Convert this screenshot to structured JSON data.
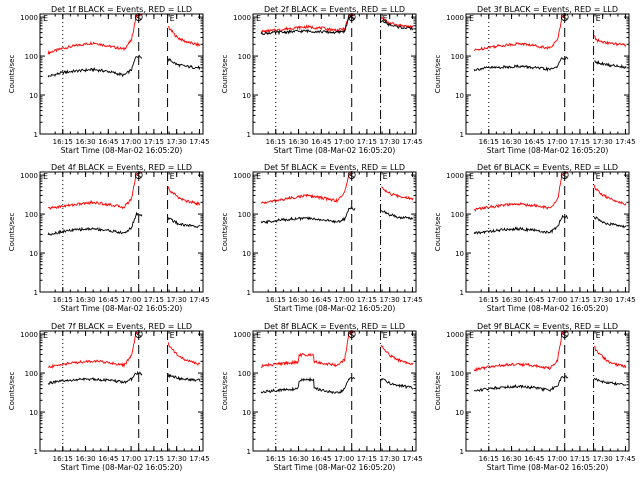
{
  "chart_data": [
    {
      "type": "line",
      "title": "Det 1f BLACK = Events, RED = LLD",
      "xlabel": "Start Time (08-Mar-02 16:05:20)",
      "ylabel": "Counts/sec",
      "x_ticks": [
        "16:15",
        "16:30",
        "16:45",
        "17:00",
        "17:15",
        "17:30",
        "17:45"
      ],
      "x_range_min": [
        -5.33,
        102
      ],
      "y_ticks": [
        "1",
        "10",
        "100",
        "1000"
      ],
      "ylim": [
        1,
        1200
      ],
      "scale": "log",
      "markers": [
        {
          "label": "E",
          "time_min": 0,
          "style": "none"
        },
        {
          "label": "",
          "time_min": 9.67,
          "style": "dotted"
        },
        {
          "label": "S",
          "time_min": 59.67,
          "style": "dashed"
        },
        {
          "label": "E",
          "time_min": 78.67,
          "style": "dashed"
        }
      ],
      "series": [
        {
          "color": "#ff0000",
          "x": [
            0,
            10,
            20,
            30,
            40,
            50,
            55,
            58,
            62,
            75,
            80,
            85,
            90,
            95,
            100
          ],
          "y": [
            120,
            160,
            190,
            220,
            180,
            150,
            260,
            1100,
            1200,
            1200,
            500,
            300,
            240,
            210,
            190
          ]
        },
        {
          "color": "#000000",
          "x": [
            0,
            10,
            20,
            30,
            40,
            50,
            55,
            58,
            80,
            85,
            90,
            95,
            100
          ],
          "y": [
            30,
            38,
            42,
            45,
            40,
            32,
            45,
            100,
            80,
            60,
            55,
            52,
            50
          ]
        }
      ],
      "gaps": [
        [
          62,
          79
        ]
      ]
    },
    {
      "type": "line",
      "title": "Det 2f BLACK = Events, RED = LLD",
      "xlabel": "Start Time (08-Mar-02 16:05:20)",
      "ylabel": "Counts/sec",
      "x_ticks": [
        "16:15",
        "16:30",
        "16:45",
        "17:00",
        "17:15",
        "17:30",
        "17:45"
      ],
      "x_range_min": [
        -5.33,
        102
      ],
      "y_ticks": [
        "1",
        "10",
        "100",
        "1000"
      ],
      "ylim": [
        1,
        1200
      ],
      "scale": "log",
      "markers": [
        {
          "label": "E",
          "time_min": 0,
          "style": "none"
        },
        {
          "label": "",
          "time_min": 9.67,
          "style": "dotted"
        },
        {
          "label": "S",
          "time_min": 59.67,
          "style": "dashed"
        },
        {
          "label": "E",
          "time_min": 78.67,
          "style": "dashdot"
        }
      ],
      "series": [
        {
          "color": "#ff0000",
          "x": [
            0,
            10,
            20,
            30,
            40,
            50,
            55,
            58,
            62,
            75,
            80,
            85,
            90,
            100
          ],
          "y": [
            420,
            460,
            520,
            560,
            520,
            460,
            500,
            1100,
            1200,
            1200,
            900,
            700,
            620,
            560
          ]
        },
        {
          "color": "#000000",
          "x": [
            0,
            10,
            20,
            30,
            40,
            50,
            55,
            58,
            80,
            85,
            90,
            100
          ],
          "y": [
            380,
            400,
            420,
            440,
            420,
            400,
            440,
            1000,
            800,
            620,
            560,
            500
          ]
        }
      ],
      "gaps": [
        [
          62,
          79
        ]
      ]
    },
    {
      "type": "line",
      "title": "Det 3f BLACK = Events, RED = LLD",
      "xlabel": "Start Time (08-Mar-02 16:05:20)",
      "ylabel": "Counts/sec",
      "x_ticks": [
        "16:15",
        "16:30",
        "16:45",
        "17:00",
        "17:15",
        "17:30",
        "17:45"
      ],
      "x_range_min": [
        -5.33,
        102
      ],
      "y_ticks": [
        "1",
        "10",
        "100",
        "1000"
      ],
      "ylim": [
        1,
        1200
      ],
      "scale": "log",
      "markers": [
        {
          "label": "E",
          "time_min": 0,
          "style": "none"
        },
        {
          "label": "",
          "time_min": 9.67,
          "style": "dotted"
        },
        {
          "label": "S",
          "time_min": 59.67,
          "style": "dashed"
        },
        {
          "label": "E",
          "time_min": 78.67,
          "style": "dashdot"
        }
      ],
      "series": [
        {
          "color": "#ff0000",
          "x": [
            0,
            10,
            20,
            30,
            40,
            50,
            55,
            58,
            62,
            75,
            80,
            85,
            90,
            95,
            100
          ],
          "y": [
            140,
            170,
            190,
            210,
            185,
            160,
            260,
            1100,
            1200,
            1200,
            260,
            230,
            210,
            200,
            190
          ]
        },
        {
          "color": "#000000",
          "x": [
            0,
            10,
            20,
            30,
            40,
            50,
            55,
            58,
            80,
            85,
            90,
            95,
            100
          ],
          "y": [
            45,
            50,
            52,
            55,
            50,
            45,
            55,
            90,
            70,
            62,
            58,
            55,
            52
          ]
        }
      ],
      "gaps": [
        [
          62,
          79
        ]
      ]
    },
    {
      "type": "line",
      "title": "Det 4f BLACK = Events, RED = LLD",
      "xlabel": "Start Time (08-Mar-02 16:05:20)",
      "ylabel": "Counts/sec",
      "x_ticks": [
        "16:15",
        "16:30",
        "16:45",
        "17:00",
        "17:15",
        "17:30",
        "17:45"
      ],
      "x_range_min": [
        -5.33,
        102
      ],
      "y_ticks": [
        "1",
        "10",
        "100",
        "1000"
      ],
      "ylim": [
        1,
        1200
      ],
      "scale": "log",
      "markers": [
        {
          "label": "E",
          "time_min": 0,
          "style": "none"
        },
        {
          "label": "",
          "time_min": 9.67,
          "style": "dotted"
        },
        {
          "label": "S",
          "time_min": 59.67,
          "style": "dashed"
        },
        {
          "label": "E",
          "time_min": 78.67,
          "style": "dashed"
        }
      ],
      "series": [
        {
          "color": "#ff0000",
          "x": [
            0,
            10,
            20,
            30,
            40,
            50,
            55,
            58,
            62,
            75,
            80,
            85,
            90,
            95,
            100
          ],
          "y": [
            140,
            160,
            180,
            200,
            175,
            150,
            250,
            1100,
            1200,
            1200,
            400,
            280,
            220,
            200,
            180
          ]
        },
        {
          "color": "#000000",
          "x": [
            0,
            10,
            20,
            30,
            40,
            50,
            55,
            58,
            80,
            85,
            90,
            95,
            100
          ],
          "y": [
            30,
            36,
            40,
            42,
            38,
            32,
            45,
            100,
            75,
            58,
            52,
            50,
            48
          ]
        }
      ],
      "gaps": [
        [
          62,
          79
        ]
      ]
    },
    {
      "type": "line",
      "title": "Det 5f BLACK = Events, RED = LLD",
      "xlabel": "Start Time (08-Mar-02 16:05:20)",
      "ylabel": "Counts/sec",
      "x_ticks": [
        "16:15",
        "16:30",
        "16:45",
        "17:00",
        "17:15",
        "17:30",
        "17:45"
      ],
      "x_range_min": [
        -5.33,
        102
      ],
      "y_ticks": [
        "1",
        "10",
        "100",
        "1000"
      ],
      "ylim": [
        1,
        1200
      ],
      "scale": "log",
      "markers": [
        {
          "label": "E",
          "time_min": 0,
          "style": "none"
        },
        {
          "label": "",
          "time_min": 9.67,
          "style": "dotted"
        },
        {
          "label": "S",
          "time_min": 59.67,
          "style": "dashed"
        },
        {
          "label": "E",
          "time_min": 78.67,
          "style": "dashdot"
        }
      ],
      "series": [
        {
          "color": "#ff0000",
          "x": [
            0,
            10,
            20,
            30,
            40,
            50,
            55,
            58,
            62,
            75,
            80,
            85,
            90,
            95,
            100
          ],
          "y": [
            190,
            220,
            260,
            300,
            260,
            220,
            350,
            1100,
            1200,
            1200,
            450,
            330,
            290,
            270,
            250
          ]
        },
        {
          "color": "#000000",
          "x": [
            0,
            10,
            20,
            30,
            40,
            50,
            55,
            58,
            80,
            85,
            90,
            95,
            100
          ],
          "y": [
            60,
            68,
            75,
            78,
            72,
            62,
            75,
            140,
            120,
            95,
            85,
            80,
            78
          ]
        }
      ],
      "gaps": [
        [
          62,
          79
        ]
      ]
    },
    {
      "type": "line",
      "title": "Det 6f BLACK = Events, RED = LLD",
      "xlabel": "Start Time (08-Mar-02 16:05:20)",
      "ylabel": "Counts/sec",
      "x_ticks": [
        "16:15",
        "16:30",
        "16:45",
        "17:00",
        "17:15",
        "17:30",
        "17:45"
      ],
      "x_range_min": [
        -5.33,
        102
      ],
      "y_ticks": [
        "1",
        "10",
        "100",
        "1000"
      ],
      "ylim": [
        1,
        1200
      ],
      "scale": "log",
      "markers": [
        {
          "label": "E",
          "time_min": 0,
          "style": "none"
        },
        {
          "label": "",
          "time_min": 9.67,
          "style": "dotted"
        },
        {
          "label": "S",
          "time_min": 59.67,
          "style": "dashed"
        },
        {
          "label": "E",
          "time_min": 78.67,
          "style": "dashdot"
        }
      ],
      "series": [
        {
          "color": "#ff0000",
          "x": [
            0,
            10,
            20,
            30,
            40,
            50,
            55,
            58,
            62,
            75,
            80,
            85,
            90,
            95,
            100
          ],
          "y": [
            130,
            150,
            170,
            180,
            165,
            140,
            230,
            1100,
            1200,
            1200,
            450,
            300,
            240,
            210,
            180
          ]
        },
        {
          "color": "#000000",
          "x": [
            0,
            10,
            20,
            30,
            40,
            50,
            55,
            58,
            80,
            85,
            90,
            95,
            100
          ],
          "y": [
            32,
            36,
            40,
            42,
            38,
            33,
            48,
            85,
            80,
            60,
            55,
            50,
            48
          ]
        }
      ],
      "gaps": [
        [
          62,
          79
        ]
      ]
    },
    {
      "type": "line",
      "title": "Det 7f BLACK = Events, RED = LLD",
      "xlabel": "Start Time (08-Mar-02 16:05:20)",
      "ylabel": "Counts/sec",
      "x_ticks": [
        "16:15",
        "16:30",
        "16:45",
        "17:00",
        "17:15",
        "17:30",
        "17:45"
      ],
      "x_range_min": [
        -5.33,
        102
      ],
      "y_ticks": [
        "1",
        "10",
        "100",
        "1000"
      ],
      "ylim": [
        1,
        1200
      ],
      "scale": "log",
      "markers": [
        {
          "label": "E",
          "time_min": 0,
          "style": "none"
        },
        {
          "label": "",
          "time_min": 9.67,
          "style": "dotted"
        },
        {
          "label": "S",
          "time_min": 59.67,
          "style": "dashed"
        },
        {
          "label": "E",
          "time_min": 78.67,
          "style": "dashed"
        }
      ],
      "series": [
        {
          "color": "#ff0000",
          "x": [
            0,
            10,
            20,
            30,
            40,
            50,
            55,
            58,
            62,
            75,
            80,
            85,
            90,
            95,
            100
          ],
          "y": [
            140,
            170,
            190,
            205,
            185,
            160,
            280,
            1100,
            1200,
            1200,
            500,
            300,
            220,
            190,
            170
          ]
        },
        {
          "color": "#000000",
          "x": [
            0,
            10,
            20,
            30,
            40,
            50,
            55,
            58,
            80,
            85,
            90,
            95,
            100
          ],
          "y": [
            55,
            62,
            68,
            70,
            65,
            58,
            70,
            100,
            85,
            75,
            70,
            68,
            65
          ]
        }
      ],
      "gaps": [
        [
          62,
          79
        ]
      ]
    },
    {
      "type": "line",
      "title": "Det 8f BLACK = Events, RED = LLD",
      "xlabel": "Start Time (08-Mar-02 16:05:20)",
      "ylabel": "Counts/sec",
      "x_ticks": [
        "16:15",
        "16:30",
        "16:45",
        "17:00",
        "17:15",
        "17:30",
        "17:45"
      ],
      "x_range_min": [
        -5.33,
        102
      ],
      "y_ticks": [
        "1",
        "10",
        "100",
        "1000"
      ],
      "ylim": [
        1,
        1200
      ],
      "scale": "log",
      "markers": [
        {
          "label": "E",
          "time_min": 0,
          "style": "none"
        },
        {
          "label": "",
          "time_min": 9.67,
          "style": "dotted"
        },
        {
          "label": "S",
          "time_min": 59.67,
          "style": "dashed"
        },
        {
          "label": "E",
          "time_min": 78.67,
          "style": "dashdot"
        }
      ],
      "series": [
        {
          "color": "#ff0000",
          "x": [
            0,
            10,
            20,
            24.5,
            25,
            34.5,
            35,
            40,
            50,
            55,
            58,
            62,
            75,
            80,
            85,
            90,
            95,
            100
          ],
          "y": [
            150,
            170,
            185,
            190,
            290,
            300,
            200,
            180,
            160,
            220,
            1100,
            1200,
            1200,
            450,
            280,
            220,
            190,
            170
          ]
        },
        {
          "color": "#000000",
          "x": [
            0,
            10,
            20,
            24.5,
            25,
            34.5,
            35,
            40,
            50,
            55,
            58,
            80,
            85,
            90,
            95,
            100
          ],
          "y": [
            32,
            36,
            38,
            40,
            65,
            70,
            40,
            36,
            30,
            38,
            75,
            70,
            55,
            48,
            45,
            42
          ]
        }
      ],
      "gaps": [
        [
          62,
          79
        ]
      ]
    },
    {
      "type": "line",
      "title": "Det 9f BLACK = Events, RED = LLD",
      "xlabel": "Start Time (08-Mar-02 16:05:20)",
      "ylabel": "Counts/sec",
      "x_ticks": [
        "16:15",
        "16:30",
        "16:45",
        "17:00",
        "17:15",
        "17:30",
        "17:45"
      ],
      "x_range_min": [
        -5.33,
        102
      ],
      "y_ticks": [
        "1",
        "10",
        "100",
        "1000"
      ],
      "ylim": [
        1,
        1200
      ],
      "scale": "log",
      "markers": [
        {
          "label": "E",
          "time_min": 0,
          "style": "none"
        },
        {
          "label": "",
          "time_min": 9.67,
          "style": "dotted"
        },
        {
          "label": "S",
          "time_min": 59.67,
          "style": "dashed"
        },
        {
          "label": "E",
          "time_min": 78.67,
          "style": "dashdot"
        }
      ],
      "series": [
        {
          "color": "#ff0000",
          "x": [
            0,
            10,
            20,
            30,
            40,
            50,
            55,
            58,
            62,
            75,
            80,
            85,
            90,
            95,
            100
          ],
          "y": [
            120,
            145,
            160,
            170,
            155,
            130,
            220,
            1100,
            1200,
            1200,
            400,
            250,
            180,
            160,
            145
          ]
        },
        {
          "color": "#000000",
          "x": [
            0,
            10,
            20,
            30,
            40,
            50,
            55,
            58,
            80,
            85,
            90,
            95,
            100
          ],
          "y": [
            35,
            40,
            44,
            46,
            42,
            36,
            48,
            80,
            70,
            60,
            55,
            52,
            48
          ]
        }
      ],
      "gaps": [
        [
          62,
          79
        ]
      ]
    }
  ]
}
